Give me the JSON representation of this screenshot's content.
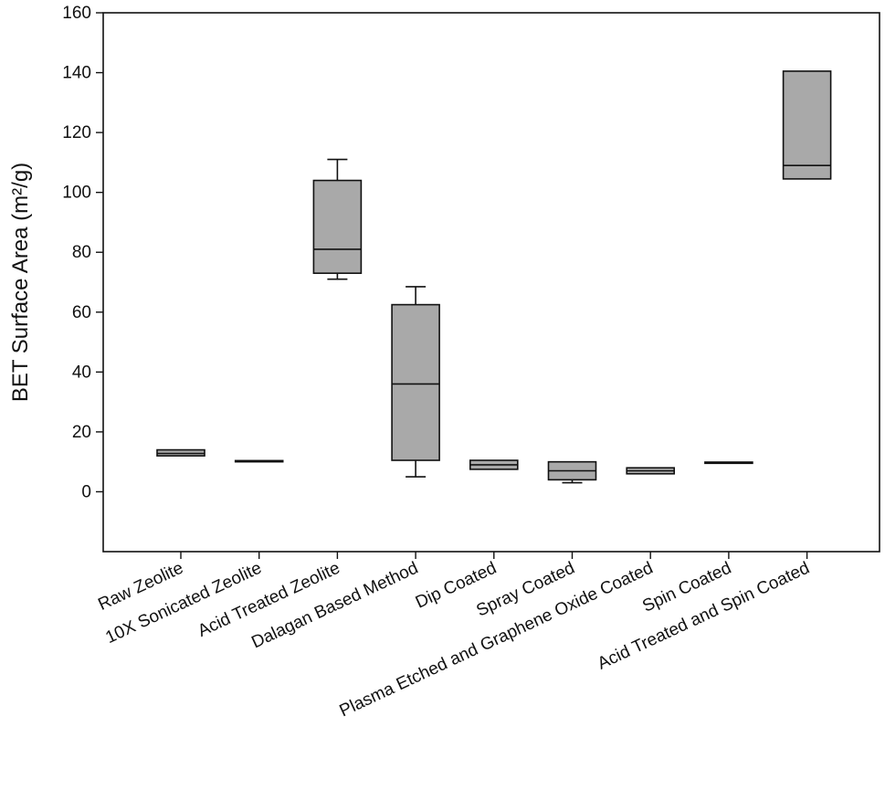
{
  "chart_data": {
    "type": "box",
    "title": "",
    "xlabel": "",
    "ylabel": "BET Surface Area (m²/g)",
    "ylim": [
      -20,
      160
    ],
    "yticks": [
      0,
      20,
      40,
      60,
      80,
      100,
      120,
      140,
      160
    ],
    "grid": false,
    "legend": "none",
    "box_color": "#a9a9a9",
    "categories": [
      "Raw Zeolite",
      "10X Sonicated Zeolite",
      "Acid Treated Zeolite",
      "Dalagan Based Method",
      "Dip Coated",
      "Spray Coated",
      "Plasma Etched and Graphene Oxide Coated",
      "Spin Coated",
      "Acid Treated and Spin Coated"
    ],
    "boxes": [
      {
        "whisker_low": null,
        "q1": 12,
        "median": 12.8,
        "q3": 14,
        "whisker_high": null
      },
      {
        "whisker_low": null,
        "q1": 10,
        "median": 10.2,
        "q3": 10.4,
        "whisker_high": null
      },
      {
        "whisker_low": 71,
        "q1": 73,
        "median": 81,
        "q3": 104,
        "whisker_high": 111
      },
      {
        "whisker_low": 5,
        "q1": 10.5,
        "median": 36,
        "q3": 62.5,
        "whisker_high": 68.5
      },
      {
        "whisker_low": null,
        "q1": 7.5,
        "median": 9,
        "q3": 10.5,
        "whisker_high": null
      },
      {
        "whisker_low": 3,
        "q1": 4,
        "median": 7,
        "q3": 10,
        "whisker_high": null
      },
      {
        "whisker_low": null,
        "q1": 6,
        "median": 7,
        "q3": 8,
        "whisker_high": null
      },
      {
        "whisker_low": null,
        "q1": 9.5,
        "median": 9.7,
        "q3": 9.9,
        "whisker_high": null
      },
      {
        "whisker_low": null,
        "q1": 104.5,
        "median": 109,
        "q3": 140.5,
        "whisker_high": null
      }
    ]
  }
}
